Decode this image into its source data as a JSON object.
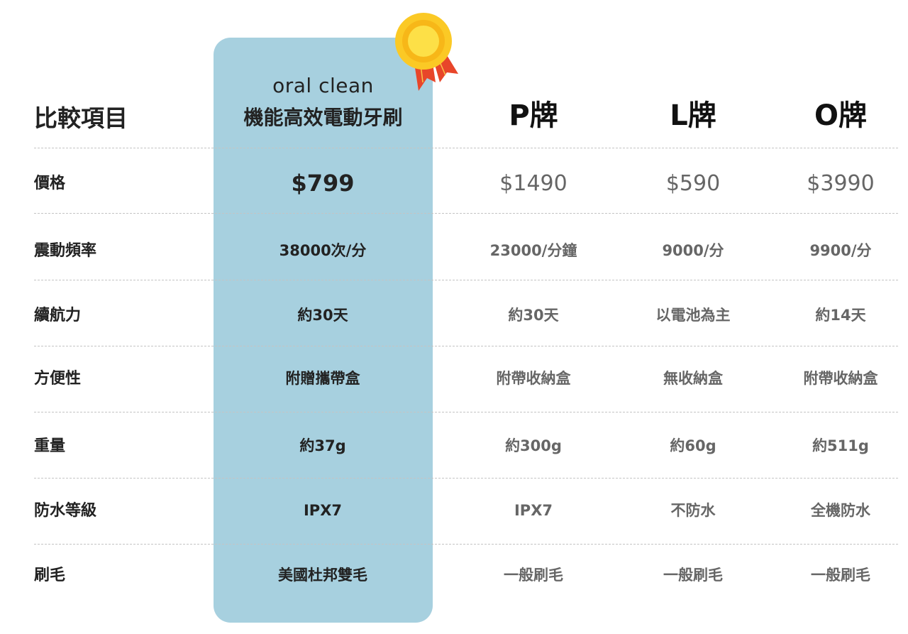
{
  "header": {
    "label": "比較項目",
    "featured_brand": "oral clean",
    "featured_product": "機能高效電動牙刷",
    "competitors": [
      "P牌",
      "L牌",
      "O牌"
    ]
  },
  "colors": {
    "featured_bg": "#a7d0df",
    "medal": "#fbc925",
    "ribbon": "#e8462a"
  },
  "icons": {
    "medal": "award-medal-icon"
  },
  "rows": [
    {
      "label": "價格",
      "values": [
        "$799",
        "$1490",
        "$590",
        "$3990"
      ]
    },
    {
      "label": "震動頻率",
      "values": [
        "38000次/分",
        "23000/分鐘",
        "9000/分",
        "9900/分"
      ]
    },
    {
      "label": "續航力",
      "values": [
        "約30天",
        "約30天",
        "以電池為主",
        "約14天"
      ]
    },
    {
      "label": "方便性",
      "values": [
        "附贈攜帶盒",
        "附帶收納盒",
        "無收納盒",
        "附帶收納盒"
      ]
    },
    {
      "label": "重量",
      "values": [
        "約37g",
        "約300g",
        "約60g",
        "約511g"
      ]
    },
    {
      "label": "防水等級",
      "values": [
        "IPX7",
        "IPX7",
        "不防水",
        "全機防水"
      ]
    },
    {
      "label": "刷毛",
      "values": [
        "美國杜邦雙毛",
        "一般刷毛",
        "一般刷毛",
        "一般刷毛"
      ]
    }
  ]
}
